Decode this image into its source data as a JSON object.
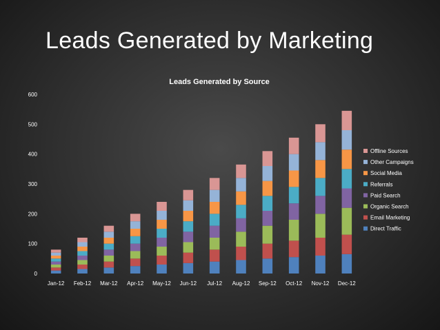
{
  "slide": {
    "title": "Leads Generated by Marketing"
  },
  "chart_data": {
    "type": "bar",
    "stacked": true,
    "title": "Leads Generated by Source",
    "xlabel": "",
    "ylabel": "",
    "ylim": [
      0,
      600
    ],
    "yticks": [
      0,
      100,
      200,
      300,
      400,
      500,
      600
    ],
    "grid": false,
    "legend_position": "right",
    "categories": [
      "Jan-12",
      "Feb-12",
      "Mar-12",
      "Apr-12",
      "May-12",
      "Jun-12",
      "Jul-12",
      "Aug-12",
      "Sep-12",
      "Oct-12",
      "Nov-12",
      "Dec-12"
    ],
    "series": [
      {
        "name": "Direct Traffic",
        "color": "#4f81bd",
        "values": [
          10,
          15,
          20,
          25,
          30,
          35,
          40,
          45,
          50,
          55,
          60,
          65
        ]
      },
      {
        "name": "Email Marketing",
        "color": "#c0504d",
        "values": [
          10,
          15,
          20,
          25,
          30,
          35,
          40,
          45,
          50,
          55,
          60,
          65
        ]
      },
      {
        "name": "Organic Search",
        "color": "#9bbb59",
        "values": [
          10,
          15,
          20,
          25,
          30,
          35,
          40,
          50,
          60,
          70,
          80,
          90
        ]
      },
      {
        "name": "Paid Search",
        "color": "#8064a2",
        "values": [
          10,
          15,
          20,
          25,
          30,
          35,
          40,
          45,
          50,
          55,
          60,
          65
        ]
      },
      {
        "name": "Referrals",
        "color": "#4bacc6",
        "values": [
          10,
          15,
          20,
          25,
          30,
          35,
          40,
          45,
          50,
          55,
          60,
          65
        ]
      },
      {
        "name": "Social Media",
        "color": "#f79646",
        "values": [
          10,
          15,
          20,
          25,
          30,
          35,
          40,
          45,
          50,
          55,
          60,
          65
        ]
      },
      {
        "name": "Other Campaigns",
        "color": "#95b3d7",
        "values": [
          10,
          15,
          20,
          25,
          30,
          35,
          40,
          45,
          50,
          55,
          60,
          65
        ]
      },
      {
        "name": "Offline Sources",
        "color": "#d99694",
        "values": [
          10,
          15,
          20,
          25,
          30,
          35,
          40,
          45,
          50,
          55,
          60,
          65
        ]
      }
    ]
  }
}
